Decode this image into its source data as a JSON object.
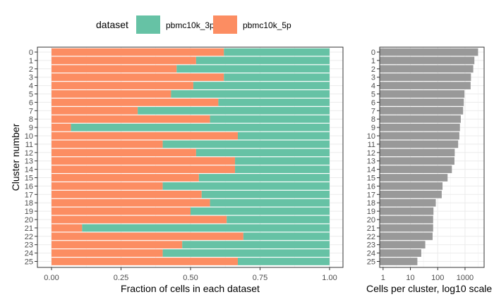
{
  "legend": {
    "title": "dataset",
    "items": [
      {
        "label": "pbmc10k_3p",
        "color": "#66C2A5"
      },
      {
        "label": "pbmc10k_5p",
        "color": "#FC8D62"
      }
    ]
  },
  "chart_data": [
    {
      "type": "bar",
      "orientation": "horizontal",
      "stacked": true,
      "xlabel": "Fraction of cells in each dataset",
      "ylabel": "Cluster number",
      "xlim": [
        0,
        1
      ],
      "xticks": [
        "0.00",
        "0.25",
        "0.50",
        "0.75",
        "1.00"
      ],
      "grid": true,
      "categories": [
        "0",
        "1",
        "2",
        "3",
        "4",
        "5",
        "6",
        "7",
        "8",
        "9",
        "10",
        "11",
        "12",
        "13",
        "14",
        "15",
        "16",
        "17",
        "18",
        "19",
        "20",
        "21",
        "22",
        "23",
        "24",
        "25"
      ],
      "series": [
        {
          "name": "pbmc10k_5p",
          "color": "#FC8D62",
          "values": [
            0.62,
            0.52,
            0.45,
            0.62,
            0.51,
            0.43,
            0.6,
            0.31,
            0.57,
            0.07,
            0.67,
            0.4,
            0.52,
            0.66,
            0.66,
            0.53,
            0.4,
            0.54,
            0.57,
            0.5,
            0.63,
            0.11,
            0.69,
            0.47,
            0.4,
            0.67
          ]
        },
        {
          "name": "pbmc10k_3p",
          "color": "#66C2A5",
          "values": [
            0.38,
            0.48,
            0.55,
            0.38,
            0.49,
            0.57,
            0.4,
            0.69,
            0.43,
            0.93,
            0.33,
            0.6,
            0.48,
            0.34,
            0.34,
            0.47,
            0.6,
            0.46,
            0.43,
            0.5,
            0.37,
            0.89,
            0.31,
            0.53,
            0.6,
            0.33
          ]
        }
      ]
    },
    {
      "type": "bar",
      "orientation": "horizontal",
      "xlabel": "Cells per cluster, log10 scale",
      "xscale": "log10",
      "xlim": [
        0.75,
        5000
      ],
      "xticks": [
        1,
        10,
        100,
        1000
      ],
      "xticklabels": [
        "1",
        "10",
        "100",
        "1000"
      ],
      "grid": true,
      "color": "#999999",
      "categories": [
        "0",
        "1",
        "2",
        "3",
        "4",
        "5",
        "6",
        "7",
        "8",
        "9",
        "10",
        "11",
        "12",
        "13",
        "14",
        "15",
        "16",
        "17",
        "18",
        "19",
        "20",
        "21",
        "22",
        "23",
        "24",
        "25"
      ],
      "values": [
        3000,
        2200,
        2000,
        1650,
        1600,
        950,
        900,
        850,
        700,
        650,
        620,
        560,
        420,
        410,
        330,
        230,
        150,
        140,
        85,
        70,
        68,
        68,
        65,
        35,
        25,
        18
      ]
    }
  ]
}
